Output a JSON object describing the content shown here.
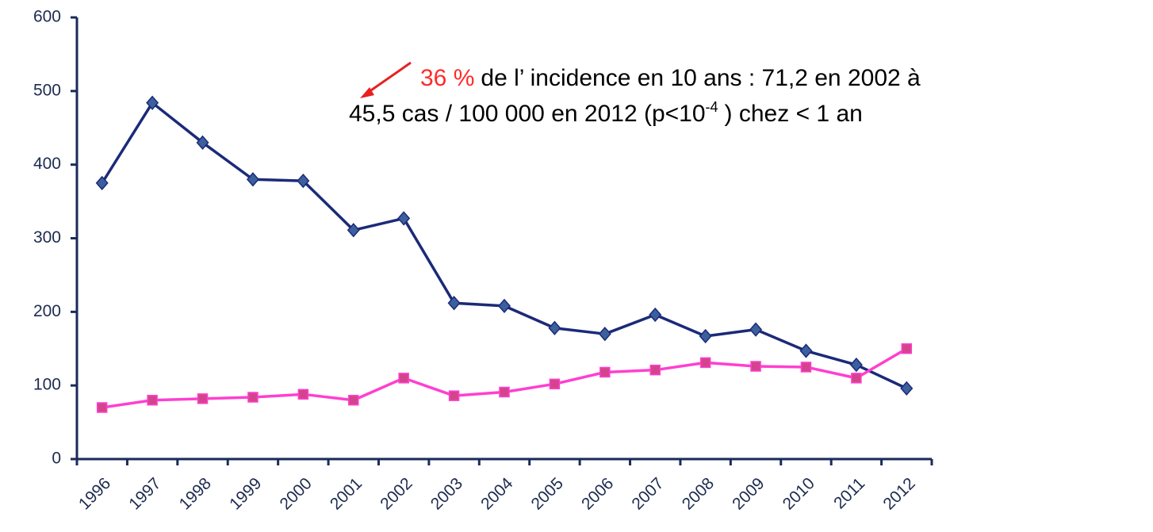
{
  "chart_data": {
    "type": "line",
    "categories": [
      "1996",
      "1997",
      "1998",
      "1999",
      "2000",
      "2001",
      "2002",
      "2003",
      "2004",
      "2005",
      "2006",
      "2007",
      "2008",
      "2009",
      "2010",
      "2011",
      "2012"
    ],
    "series": [
      {
        "color": "#1b2a78",
        "marker_color": "#3c5f9e",
        "marker": "diamond",
        "values": [
          375,
          484,
          430,
          380,
          378,
          311,
          327,
          212,
          208,
          178,
          170,
          196,
          167,
          176,
          147,
          128,
          96
        ]
      },
      {
        "color": "#ff3fd0",
        "marker_color": "#d4448c",
        "marker": "square",
        "values": [
          70,
          80,
          82,
          84,
          88,
          80,
          110,
          86,
          91,
          102,
          118,
          121,
          131,
          126,
          125,
          110,
          150
        ]
      }
    ],
    "ylim": [
      0,
      600
    ],
    "yticks": [
      0,
      100,
      200,
      300,
      400,
      500,
      600
    ],
    "grid": false,
    "annotation": {
      "highlight": "36 %",
      "line1": "de l’ incidence en 10 ans  : 71,2 en 2002 à",
      "line2a": "45,5 cas / 100 000 en 2012 (p<10",
      "line2sup": "-4",
      "line2b": ") chez < 1 an"
    }
  }
}
